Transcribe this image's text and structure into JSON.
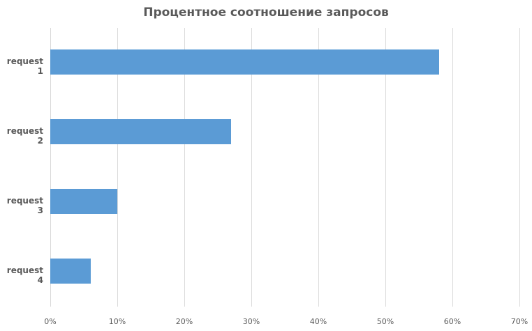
{
  "chart_data": {
    "type": "bar",
    "orientation": "horizontal",
    "title": "Процентное соотношение запросов",
    "categories": [
      "request 1",
      "request 2",
      "request 3",
      "request 4"
    ],
    "values": [
      58,
      27,
      10,
      6
    ],
    "value_format": "percent",
    "xlabel": "",
    "ylabel": "",
    "xlim": [
      0,
      70
    ],
    "x_ticks": [
      "0%",
      "10%",
      "20%",
      "30%",
      "40%",
      "50%",
      "60%",
      "70%"
    ],
    "grid": "vertical",
    "legend": "none",
    "bar_color": "#5b9bd5"
  }
}
